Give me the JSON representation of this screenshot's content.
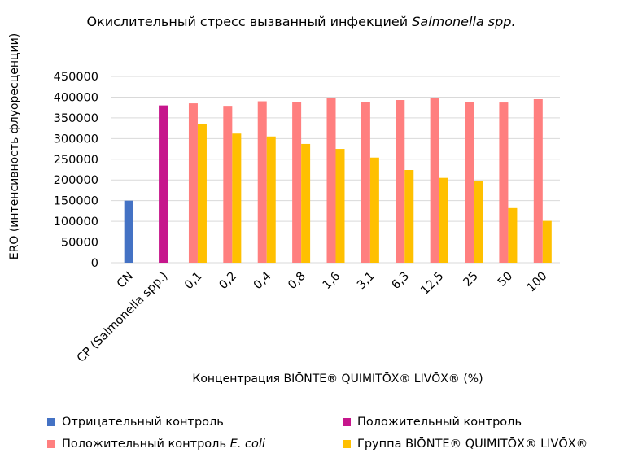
{
  "title_line1": "Окислительный стресс вызванный инфекцией",
  "title_italic": "Salmonella spp.",
  "colors": {
    "neg": "#4472c4",
    "pos": "#c6168c",
    "ecoli": "#ff7f7f",
    "group": "#ffc000",
    "grid": "#d9d9d9"
  },
  "legend": {
    "neg": "Отрицательный контроль",
    "pos": "Положительный контроль",
    "ecoli_prefix": "Положительный контроль",
    "ecoli_italic": "E. coli",
    "group": "Группа BIŌNTE® QUIMITŌX® LIVŌX®"
  },
  "chart_data": {
    "type": "bar",
    "title": "Окислительный стресс вызванный инфекцией Salmonella spp.",
    "xlabel": "Концентрация BIŌNTE® QUIMITŌX® LIVŌX® (%)",
    "ylabel": "ERO (интенсивность флуоресценции)",
    "ylim": [
      0,
      450000
    ],
    "yticks": [
      "0",
      "50000",
      "100000",
      "150000",
      "200000",
      "250000",
      "300000",
      "350000",
      "400000",
      "450000"
    ],
    "categories": [
      "CN",
      "CP (Salmonella spp.)",
      "0,1",
      "0,2",
      "0,4",
      "0,8",
      "1,6",
      "3,1",
      "6,3",
      "12,5",
      "25",
      "50",
      "100"
    ],
    "grid": true,
    "legend_position": "bottom",
    "series": [
      {
        "name": "Отрицательный контроль",
        "values": [
          150000,
          null,
          null,
          null,
          null,
          null,
          null,
          null,
          null,
          null,
          null,
          null,
          null
        ]
      },
      {
        "name": "Положительный контроль",
        "values": [
          null,
          380000,
          null,
          null,
          null,
          null,
          null,
          null,
          null,
          null,
          null,
          null,
          null
        ]
      },
      {
        "name": "Положительный контроль E. coli",
        "values": [
          null,
          null,
          385000,
          379000,
          390000,
          389000,
          398000,
          388000,
          393000,
          397000,
          388000,
          387000,
          395000
        ]
      },
      {
        "name": "Группа BIŌNTE® QUIMITŌX® LIVŌX®",
        "values": [
          null,
          null,
          336000,
          312000,
          305000,
          287000,
          275000,
          254000,
          224000,
          205000,
          198000,
          132000,
          101000
        ]
      }
    ]
  }
}
